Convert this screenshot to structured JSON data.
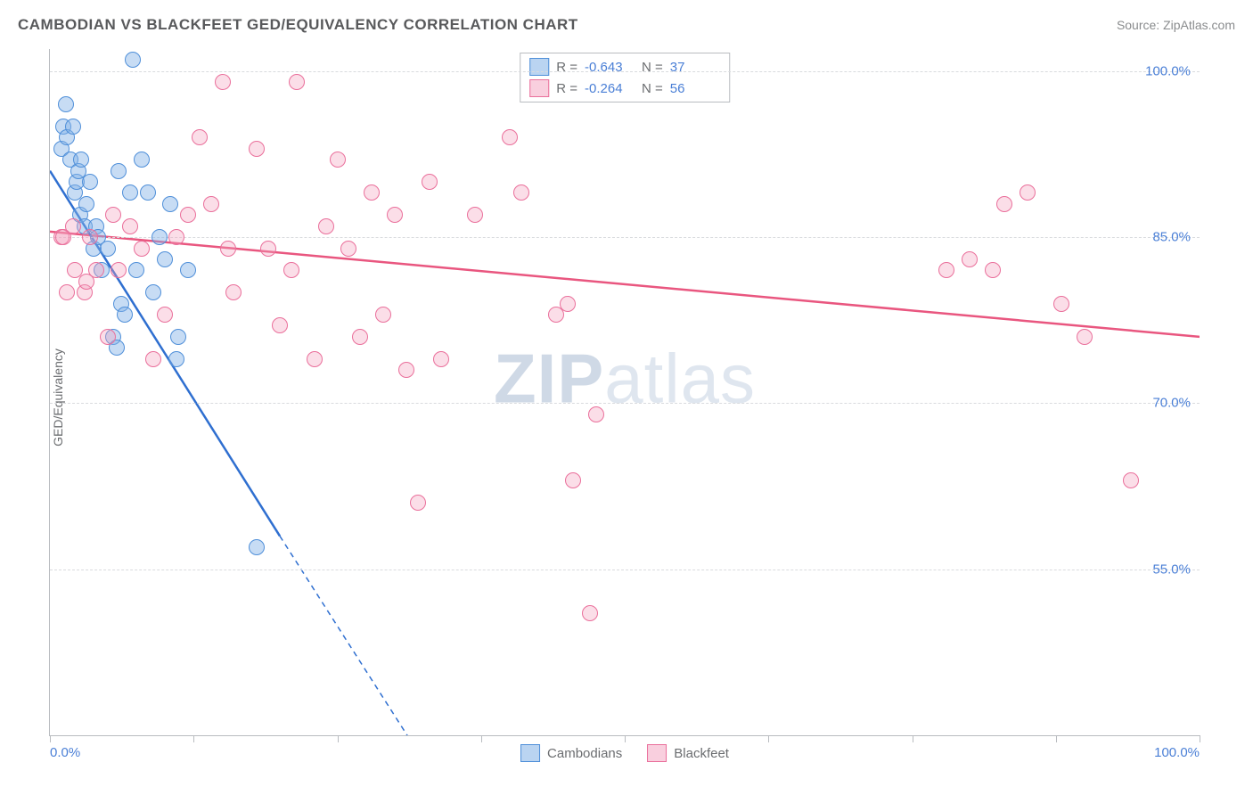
{
  "title": "CAMBODIAN VS BLACKFEET GED/EQUIVALENCY CORRELATION CHART",
  "source_label": "Source: ZipAtlas.com",
  "ylabel": "GED/Equivalency",
  "watermark": {
    "bold": "ZIP",
    "rest": "atlas"
  },
  "chart": {
    "type": "scatter",
    "background_color": "#ffffff",
    "grid_color": "#d9dbde",
    "axis_color": "#b9bcc0",
    "tick_label_color": "#4a7fd6",
    "label_color": "#6b6d70",
    "title_color": "#58595b",
    "title_fontsize": 17,
    "label_fontsize": 14,
    "tick_fontsize": 15,
    "marker_radius": 9,
    "xlim": [
      0,
      100
    ],
    "ylim": [
      40,
      102
    ],
    "y_gridlines": [
      55,
      70,
      85,
      100
    ],
    "y_tick_labels": [
      "55.0%",
      "70.0%",
      "85.0%",
      "100.0%"
    ],
    "x_ticks": [
      0,
      12.5,
      25,
      37.5,
      50,
      62.5,
      75,
      87.5,
      100
    ],
    "x_tick_labels_shown": {
      "0": "0.0%",
      "100": "100.0%"
    },
    "series": [
      {
        "name": "Cambodians",
        "color_fill": "rgba(130,177,230,0.45)",
        "color_stroke": "#4f8fd9",
        "trend_color": "#2f6fd0",
        "trend_width": 2.5,
        "trend": {
          "x1": 0,
          "y1": 91,
          "x2_solid": 20,
          "y2_solid": 58,
          "x2_dash": 36,
          "y2_dash": 32
        },
        "R": "-0.643",
        "N": "37",
        "points": [
          [
            1.0,
            93
          ],
          [
            1.2,
            95
          ],
          [
            1.5,
            94
          ],
          [
            1.8,
            92
          ],
          [
            2.0,
            95
          ],
          [
            2.2,
            89
          ],
          [
            2.3,
            90
          ],
          [
            2.5,
            91
          ],
          [
            2.6,
            87
          ],
          [
            2.7,
            92
          ],
          [
            3.0,
            86
          ],
          [
            3.2,
            88
          ],
          [
            3.5,
            90
          ],
          [
            3.8,
            84
          ],
          [
            4.0,
            86
          ],
          [
            4.2,
            85
          ],
          [
            4.5,
            82
          ],
          [
            5.0,
            84
          ],
          [
            5.5,
            76
          ],
          [
            5.8,
            75
          ],
          [
            6.0,
            91
          ],
          [
            6.2,
            79
          ],
          [
            6.5,
            78
          ],
          [
            7.0,
            89
          ],
          [
            7.2,
            101
          ],
          [
            7.5,
            82
          ],
          [
            8.0,
            92
          ],
          [
            8.5,
            89
          ],
          [
            9.0,
            80
          ],
          [
            9.5,
            85
          ],
          [
            10.0,
            83
          ],
          [
            10.5,
            88
          ],
          [
            11.0,
            74
          ],
          [
            11.2,
            76
          ],
          [
            12.0,
            82
          ],
          [
            18.0,
            57
          ],
          [
            1.4,
            97
          ]
        ]
      },
      {
        "name": "Blackfeet",
        "color_fill": "rgba(244,160,190,0.35)",
        "color_stroke": "#ea6f9b",
        "trend_color": "#e9567f",
        "trend_width": 2.5,
        "trend": {
          "x1": 0,
          "y1": 85.5,
          "x2_solid": 100,
          "y2_solid": 76
        },
        "R": "-0.264",
        "N": "56",
        "points": [
          [
            1.0,
            85
          ],
          [
            1.2,
            85
          ],
          [
            1.5,
            80
          ],
          [
            2.0,
            86
          ],
          [
            2.2,
            82
          ],
          [
            3.0,
            80
          ],
          [
            3.2,
            81
          ],
          [
            3.5,
            85
          ],
          [
            4.0,
            82
          ],
          [
            5.0,
            76
          ],
          [
            5.5,
            87
          ],
          [
            6.0,
            82
          ],
          [
            7.0,
            86
          ],
          [
            8.0,
            84
          ],
          [
            9.0,
            74
          ],
          [
            10.0,
            78
          ],
          [
            11.0,
            85
          ],
          [
            12.0,
            87
          ],
          [
            13.0,
            94
          ],
          [
            14.0,
            88
          ],
          [
            15.0,
            99
          ],
          [
            15.5,
            84
          ],
          [
            16.0,
            80
          ],
          [
            18.0,
            93
          ],
          [
            19.0,
            84
          ],
          [
            20.0,
            77
          ],
          [
            21.0,
            82
          ],
          [
            21.5,
            99
          ],
          [
            23.0,
            74
          ],
          [
            24.0,
            86
          ],
          [
            25.0,
            92
          ],
          [
            26.0,
            84
          ],
          [
            27.0,
            76
          ],
          [
            28.0,
            89
          ],
          [
            29.0,
            78
          ],
          [
            30.0,
            87
          ],
          [
            31.0,
            73
          ],
          [
            32.0,
            61
          ],
          [
            33.0,
            90
          ],
          [
            34.0,
            74
          ],
          [
            37.0,
            87
          ],
          [
            40.0,
            94
          ],
          [
            41.0,
            89
          ],
          [
            44.0,
            78
          ],
          [
            45.0,
            79
          ],
          [
            45.5,
            63
          ],
          [
            47.0,
            51
          ],
          [
            47.5,
            69
          ],
          [
            78.0,
            82
          ],
          [
            80.0,
            83
          ],
          [
            82.0,
            82
          ],
          [
            85.0,
            89
          ],
          [
            88.0,
            79
          ],
          [
            90.0,
            76
          ],
          [
            94.0,
            63
          ],
          [
            83.0,
            88
          ]
        ]
      }
    ],
    "legend_top_labels": {
      "R": "R =",
      "N": "N ="
    },
    "legend_bottom": [
      "Cambodians",
      "Blackfeet"
    ]
  }
}
